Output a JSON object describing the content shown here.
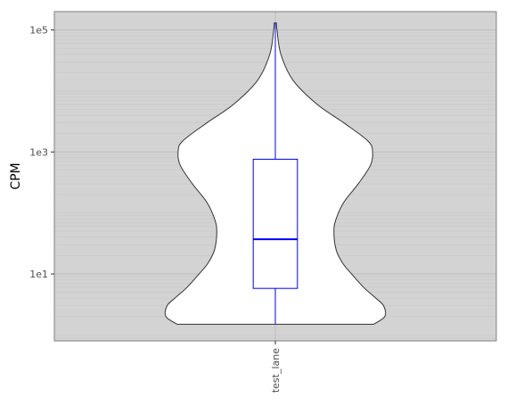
{
  "chart_data": {
    "type": "violin",
    "ylabel": "CPM",
    "xlabel": "",
    "y_scale": "log10",
    "ylim": [
      0.8,
      200000
    ],
    "grid": true,
    "categories": [
      "test_lane"
    ],
    "y_ticks": [
      {
        "value": 10,
        "label": "1e1"
      },
      {
        "value": 1000,
        "label": "1e3"
      },
      {
        "value": 100000,
        "label": "1e5"
      }
    ],
    "violin": {
      "category": "test_lane",
      "min": 1.5,
      "max": 130000,
      "density_profile": [
        {
          "y": 1.5,
          "w": 0.89
        },
        {
          "y": 2.0,
          "w": 0.99
        },
        {
          "y": 3.0,
          "w": 0.98
        },
        {
          "y": 4.0,
          "w": 0.91
        },
        {
          "y": 6.0,
          "w": 0.8
        },
        {
          "y": 10.0,
          "w": 0.69
        },
        {
          "y": 15.0,
          "w": 0.61
        },
        {
          "y": 25.0,
          "w": 0.55
        },
        {
          "y": 50.0,
          "w": 0.53
        },
        {
          "y": 80.0,
          "w": 0.55
        },
        {
          "y": 150.0,
          "w": 0.62
        },
        {
          "y": 300.0,
          "w": 0.75
        },
        {
          "y": 600.0,
          "w": 0.86
        },
        {
          "y": 1000.0,
          "w": 0.88
        },
        {
          "y": 1500.0,
          "w": 0.84
        },
        {
          "y": 3000.0,
          "w": 0.62
        },
        {
          "y": 6000.0,
          "w": 0.38
        },
        {
          "y": 15000.0,
          "w": 0.16
        },
        {
          "y": 40000.0,
          "w": 0.05
        },
        {
          "y": 100000.0,
          "w": 0.015
        },
        {
          "y": 130000.0,
          "w": 0.01
        }
      ]
    },
    "boxplot": {
      "category": "test_lane",
      "whisker_low": 1.5,
      "q1": 5.8,
      "median": 37,
      "q3": 760,
      "whisker_high": 130000
    },
    "colors": {
      "panel_background": "#d3d3d3",
      "panel_border": "#7f7f7f",
      "grid_major": "#bdbdbd",
      "grid_minor": "#c7c7c7",
      "violin_fill": "#ffffff",
      "violin_stroke": "#333333",
      "box_stroke": "#0000ff"
    }
  }
}
